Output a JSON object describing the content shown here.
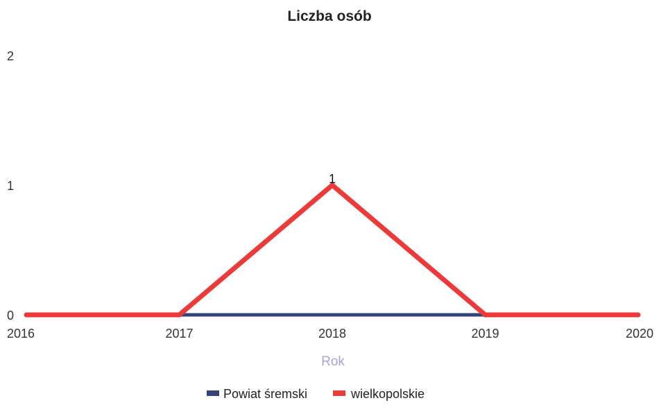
{
  "chart_data": {
    "type": "line",
    "title": "Liczba osób",
    "xlabel": "Rok",
    "ylabel": "",
    "x": [
      "2016",
      "2017",
      "2018",
      "2019",
      "2020"
    ],
    "y_ticks": [
      "0",
      "1",
      "2"
    ],
    "ylim": [
      0,
      2
    ],
    "grid": false,
    "legend_position": "bottom",
    "series": [
      {
        "name": "Powiat śremski",
        "color": "#34437a",
        "values": [
          null,
          0,
          0,
          0,
          null
        ]
      },
      {
        "name": "wielkopolskie",
        "color": "#ec3a3b",
        "values": [
          0,
          0,
          1,
          0,
          0
        ]
      }
    ],
    "data_labels": [
      {
        "series": 1,
        "index": 2,
        "text": "1"
      }
    ]
  }
}
